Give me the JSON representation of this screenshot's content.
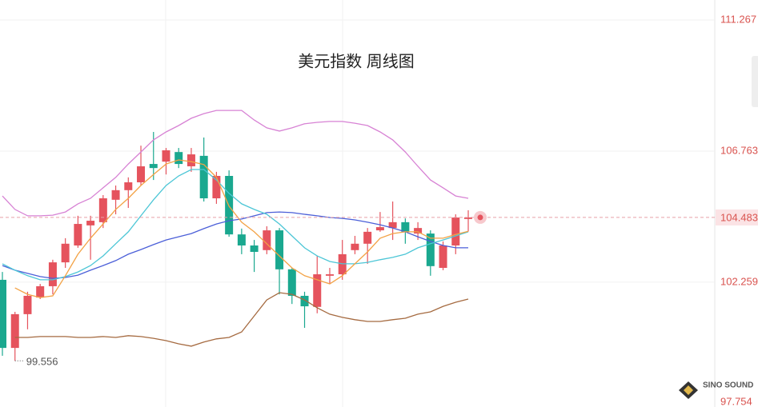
{
  "chart_data": {
    "type": "candlestick",
    "title": "美元指数 周线图",
    "ylim": [
      97.97,
      111.954
    ],
    "yticks": [
      97.754,
      102.259,
      106.763,
      111.267
    ],
    "grid": true,
    "up_color": "#e5535d",
    "down_color": "#1aa88f",
    "open": [
      102.34,
      100.0,
      101.16,
      101.73,
      102.12,
      102.94,
      103.52,
      104.21,
      104.32,
      105.09,
      105.42,
      105.69,
      106.32,
      106.4,
      106.73,
      106.24,
      106.6,
      105.14,
      105.91,
      103.9,
      103.52,
      103.36,
      104.04,
      102.7,
      101.79,
      101.41,
      102.48,
      102.53,
      103.36,
      103.58,
      104.04,
      104.12,
      104.32,
      103.93,
      103.93,
      102.75,
      103.52,
      104.43
    ],
    "high": [
      102.61,
      101.24,
      101.93,
      102.2,
      103.03,
      103.77,
      104.54,
      104.54,
      105.25,
      105.58,
      105.86,
      106.95,
      107.42,
      106.87,
      106.87,
      106.87,
      107.23,
      106.05,
      106.1,
      104.1,
      103.71,
      104.18,
      104.12,
      102.75,
      101.93,
      103.16,
      102.75,
      103.71,
      103.85,
      104.12,
      104.67,
      105.03,
      104.45,
      104.32,
      104.04,
      103.66,
      104.59,
      104.73
    ],
    "low": [
      99.73,
      99.556,
      100.64,
      101.68,
      101.84,
      102.75,
      103.44,
      103.03,
      104.12,
      104.59,
      104.81,
      105.58,
      105.77,
      105.96,
      106.18,
      106.05,
      105.03,
      104.95,
      103.82,
      103.22,
      102.61,
      103.22,
      101.84,
      101.51,
      100.69,
      101.19,
      102.2,
      102.34,
      103.22,
      102.89,
      103.99,
      103.71,
      103.58,
      103.71,
      102.48,
      102.67,
      103.22,
      104.0
    ],
    "close": [
      100.0,
      101.16,
      101.79,
      102.12,
      102.94,
      103.58,
      104.26,
      104.37,
      105.14,
      105.42,
      105.69,
      106.24,
      106.18,
      106.79,
      106.32,
      106.65,
      105.14,
      105.91,
      103.9,
      103.52,
      103.3,
      104.04,
      102.7,
      101.79,
      101.43,
      102.53,
      102.53,
      103.22,
      103.58,
      103.99,
      104.15,
      104.32,
      103.99,
      104.12,
      102.81,
      103.52,
      104.48,
      104.483
    ],
    "series": [
      {
        "color": "#d782d4",
        "values": [
          105.22,
          104.76,
          104.54,
          104.54,
          104.56,
          104.67,
          104.95,
          105.14,
          105.5,
          105.86,
          106.32,
          106.73,
          107.15,
          107.42,
          107.64,
          107.89,
          108.05,
          108.16,
          108.16,
          108.16,
          107.83,
          107.56,
          107.45,
          107.56,
          107.7,
          107.75,
          107.78,
          107.78,
          107.72,
          107.64,
          107.42,
          107.15,
          106.73,
          106.24,
          105.77,
          105.5,
          105.22,
          105.14
        ]
      },
      {
        "color": "#a56a40",
        "values": [
          null,
          100.36,
          100.36,
          100.39,
          100.39,
          100.39,
          100.36,
          100.36,
          100.39,
          100.36,
          100.42,
          100.39,
          100.33,
          100.25,
          100.14,
          100.06,
          100.2,
          100.31,
          100.36,
          100.55,
          101.1,
          101.65,
          101.9,
          101.84,
          101.65,
          101.38,
          101.16,
          101.05,
          100.97,
          100.91,
          100.91,
          100.97,
          101.02,
          101.16,
          101.24,
          101.43,
          101.57,
          101.68
        ]
      },
      {
        "color": "#4b5fd8",
        "values": [
          102.83,
          102.67,
          102.56,
          102.45,
          102.39,
          102.42,
          102.5,
          102.67,
          102.83,
          103.0,
          103.22,
          103.38,
          103.55,
          103.71,
          103.82,
          103.93,
          104.1,
          104.26,
          104.37,
          104.43,
          104.54,
          104.65,
          104.67,
          104.65,
          104.59,
          104.54,
          104.48,
          104.45,
          104.4,
          104.32,
          104.23,
          104.12,
          103.99,
          103.82,
          103.66,
          103.52,
          103.44,
          103.44
        ]
      },
      {
        "color": "#4cc6d6",
        "values": [
          102.89,
          102.67,
          102.48,
          102.34,
          102.34,
          102.45,
          102.61,
          102.83,
          103.16,
          103.58,
          103.99,
          104.54,
          105.09,
          105.58,
          105.91,
          106.13,
          106.13,
          105.77,
          105.31,
          104.95,
          104.76,
          104.59,
          104.26,
          103.85,
          103.44,
          103.16,
          102.97,
          102.89,
          102.89,
          102.94,
          103.03,
          103.11,
          103.22,
          103.44,
          103.58,
          103.71,
          103.85,
          103.99
        ]
      },
      {
        "color": "#f3a245",
        "values": [
          null,
          102.06,
          101.84,
          101.73,
          101.79,
          102.48,
          103.22,
          103.77,
          104.26,
          104.76,
          105.14,
          105.58,
          105.96,
          106.32,
          106.46,
          106.4,
          106.3,
          105.86,
          104.87,
          104.32,
          103.99,
          103.58,
          103.16,
          102.75,
          102.48,
          102.34,
          102.2,
          102.48,
          102.89,
          103.3,
          103.77,
          103.93,
          103.99,
          103.99,
          103.77,
          103.77,
          103.9,
          104.01
        ]
      }
    ],
    "low_annotation": 99.556,
    "last_price": 104.483,
    "watermark": "SINO SOUND"
  }
}
